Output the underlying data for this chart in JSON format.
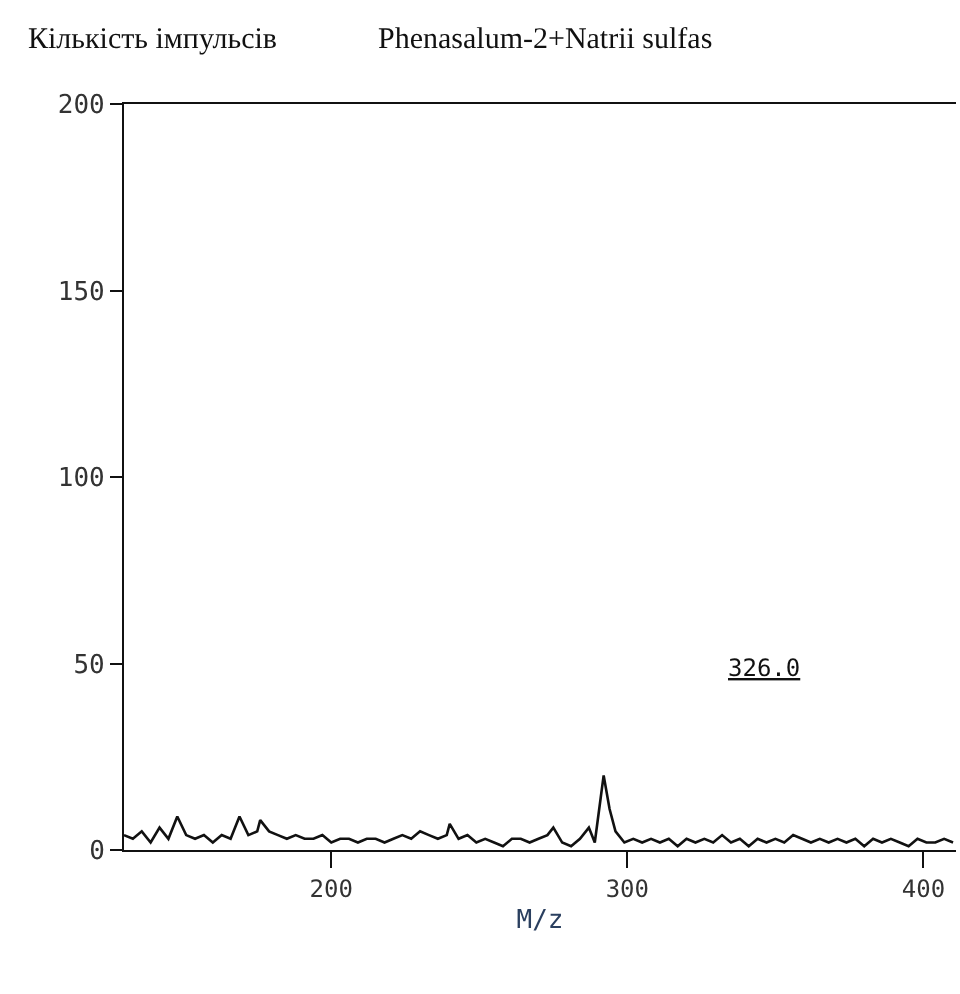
{
  "chart_data": {
    "type": "line",
    "title": "Phenasalum-2+Natrii sulfas",
    "ylabel": "Кількість імпульсів",
    "xlabel": "M/z",
    "x": [
      130,
      133,
      136,
      139,
      142,
      145,
      148,
      151,
      154,
      157,
      160,
      163,
      166,
      169,
      172,
      175,
      176,
      179,
      182,
      185,
      188,
      191,
      194,
      197,
      200,
      203,
      206,
      209,
      212,
      215,
      218,
      221,
      224,
      227,
      230,
      233,
      236,
      239,
      240,
      243,
      246,
      249,
      252,
      255,
      258,
      261,
      264,
      267,
      270,
      273,
      275,
      278,
      281,
      284,
      287,
      289,
      291,
      292,
      294,
      296,
      299,
      302,
      305,
      308,
      311,
      314,
      317,
      320,
      323,
      326,
      329,
      332,
      335,
      338,
      341,
      344,
      347,
      350,
      353,
      356,
      359,
      362,
      365,
      368,
      371,
      374,
      377,
      380,
      383,
      386,
      389,
      392,
      395,
      398,
      401,
      404,
      407,
      410
    ],
    "series": [
      {
        "color": "#111111",
        "values": [
          4,
          3,
          5,
          2,
          6,
          3,
          9,
          4,
          3,
          4,
          2,
          4,
          3,
          9,
          4,
          5,
          8,
          5,
          4,
          3,
          4,
          3,
          3,
          4,
          2,
          3,
          3,
          2,
          3,
          3,
          2,
          3,
          4,
          3,
          5,
          4,
          3,
          4,
          7,
          3,
          4,
          2,
          3,
          2,
          1,
          3,
          3,
          2,
          3,
          4,
          6,
          2,
          1,
          3,
          6,
          2,
          14,
          20,
          11,
          5,
          2,
          3,
          2,
          3,
          2,
          3,
          1,
          3,
          2,
          3,
          2,
          4,
          2,
          3,
          1,
          3,
          2,
          3,
          2,
          4,
          3,
          2,
          3,
          2,
          3,
          2,
          3,
          1,
          3,
          2,
          3,
          2,
          1,
          3,
          2,
          2,
          3,
          2
        ]
      }
    ],
    "annotations": [
      "326.0"
    ],
    "xlim": [
      130,
      411
    ],
    "xticks": [
      200,
      300,
      400
    ],
    "ylim": [
      0,
      200
    ],
    "yticks": [
      0,
      50,
      100,
      150,
      200
    ],
    "legend": false,
    "marker": "none",
    "line_style": "solid"
  }
}
